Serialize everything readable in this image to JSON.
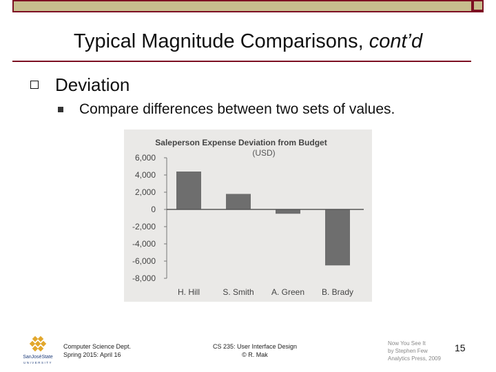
{
  "slide": {
    "title_main": "Typical Magnitude Comparisons, ",
    "title_italic": "cont’d",
    "bullet1": "Deviation",
    "bullet2": "Compare differences between two sets of values."
  },
  "footer": {
    "dept": "Computer Science Dept.",
    "term": "Spring 2015: April 16",
    "course": "CS 235: User Interface Design",
    "author": "© R. Mak",
    "book_title": "Now You See It",
    "book_author": "by Stephen Few",
    "book_pub": "Analytics Press, 2009",
    "page": "15",
    "logo_line1": "SanJoséState",
    "logo_line2": "UNIVERSITY"
  },
  "colors": {
    "brand": "#7d0f22",
    "band": "#c7bd8d",
    "bar": "#6e6e6e"
  },
  "chart_data": {
    "type": "bar",
    "title": "Saleperson Expense Deviation from Budget",
    "subtitle": "(USD)",
    "categories": [
      "H. Hill",
      "S. Smith",
      "A. Green",
      "B. Brady"
    ],
    "values": [
      4400,
      1800,
      -500,
      -6500
    ],
    "ylim": [
      -8000,
      6000
    ],
    "yticks": [
      "6,000",
      "4,000",
      "2,000",
      "0",
      "-2,000",
      "-4,000",
      "-6,000",
      "-8,000"
    ],
    "ytick_values": [
      6000,
      4000,
      2000,
      0,
      -2000,
      -4000,
      -6000,
      -8000
    ],
    "grid": false,
    "legend": "none"
  }
}
